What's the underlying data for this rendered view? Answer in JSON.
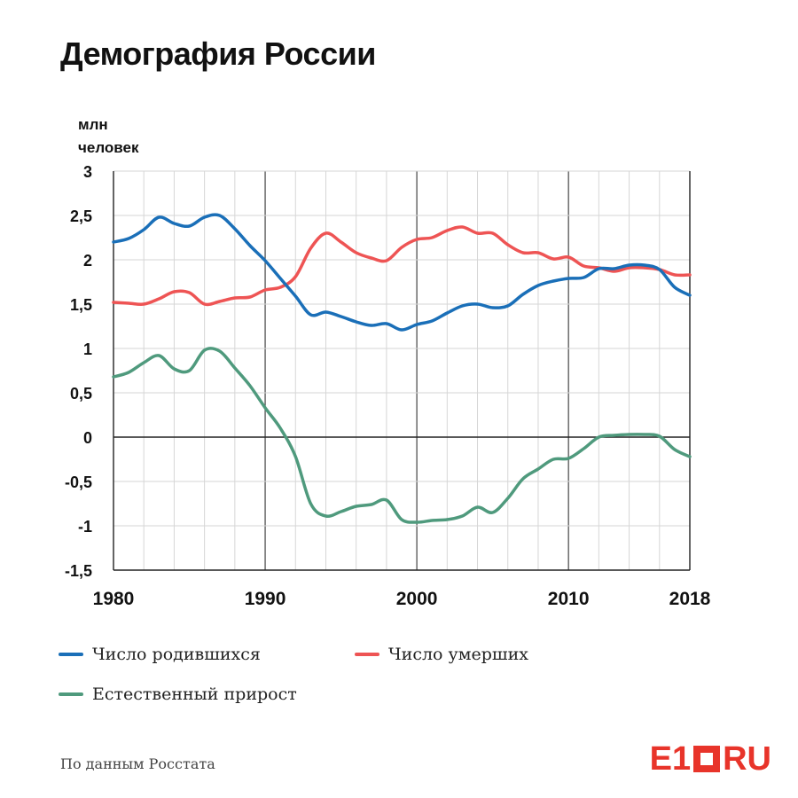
{
  "title": "Демография России",
  "unit": {
    "line1": "млн",
    "line2": "человек"
  },
  "legend": [
    {
      "label": "Число родившихся",
      "color": "#1a6fb8"
    },
    {
      "label": "Число умерших",
      "color": "#ee5454"
    },
    {
      "label": "Естественный прирост",
      "color": "#4f9a7d"
    }
  ],
  "source": "По данным Росстата",
  "logo": {
    "left": "E1",
    "right": "RU"
  },
  "chart_data": {
    "type": "line",
    "title": "Демография России",
    "ylabel": "млн человек",
    "xlim": [
      1980,
      2018
    ],
    "ylim": [
      -1.5,
      3
    ],
    "x_ticks": [
      1980,
      1990,
      2000,
      2010,
      2018
    ],
    "x_tick_labels": [
      "1980",
      "1990",
      "2000",
      "2010",
      "2018"
    ],
    "y_ticks": [
      3,
      2.5,
      2,
      1.5,
      1,
      0.5,
      0,
      -0.5,
      -1,
      -1.5
    ],
    "y_tick_labels": [
      "3",
      "2,5",
      "2",
      "1,5",
      "1",
      "0,5",
      "0",
      "-0,5",
      "-1",
      "-1,5"
    ],
    "grid": true,
    "legend_position": "bottom",
    "x": [
      1980,
      1981,
      1982,
      1983,
      1984,
      1985,
      1986,
      1987,
      1988,
      1989,
      1990,
      1991,
      1992,
      1993,
      1994,
      1995,
      1996,
      1997,
      1998,
      1999,
      2000,
      2001,
      2002,
      2003,
      2004,
      2005,
      2006,
      2007,
      2008,
      2009,
      2010,
      2011,
      2012,
      2013,
      2014,
      2015,
      2016,
      2017,
      2018
    ],
    "series": [
      {
        "name": "Число родившихся",
        "color": "#1a6fb8",
        "values": [
          2.2,
          2.24,
          2.34,
          2.48,
          2.41,
          2.38,
          2.48,
          2.5,
          2.35,
          2.16,
          1.99,
          1.79,
          1.59,
          1.38,
          1.41,
          1.36,
          1.3,
          1.26,
          1.28,
          1.21,
          1.27,
          1.31,
          1.4,
          1.48,
          1.5,
          1.46,
          1.48,
          1.61,
          1.71,
          1.76,
          1.79,
          1.8,
          1.9,
          1.9,
          1.94,
          1.94,
          1.89,
          1.69,
          1.6
        ]
      },
      {
        "name": "Число умерших",
        "color": "#ee5454",
        "values": [
          1.52,
          1.51,
          1.5,
          1.56,
          1.64,
          1.63,
          1.5,
          1.53,
          1.57,
          1.58,
          1.66,
          1.69,
          1.81,
          2.13,
          2.3,
          2.2,
          2.08,
          2.02,
          1.99,
          2.14,
          2.23,
          2.25,
          2.33,
          2.37,
          2.3,
          2.3,
          2.17,
          2.08,
          2.08,
          2.01,
          2.03,
          1.93,
          1.91,
          1.87,
          1.91,
          1.91,
          1.89,
          1.83,
          1.83
        ]
      },
      {
        "name": "Естественный прирост",
        "color": "#4f9a7d",
        "values": [
          0.68,
          0.73,
          0.84,
          0.92,
          0.77,
          0.75,
          0.98,
          0.97,
          0.78,
          0.58,
          0.33,
          0.1,
          -0.22,
          -0.75,
          -0.89,
          -0.84,
          -0.78,
          -0.76,
          -0.71,
          -0.93,
          -0.96,
          -0.94,
          -0.93,
          -0.89,
          -0.79,
          -0.85,
          -0.69,
          -0.47,
          -0.36,
          -0.25,
          -0.24,
          -0.13,
          0,
          0.02,
          0.03,
          0.03,
          0.01,
          -0.14,
          -0.22
        ]
      }
    ]
  }
}
